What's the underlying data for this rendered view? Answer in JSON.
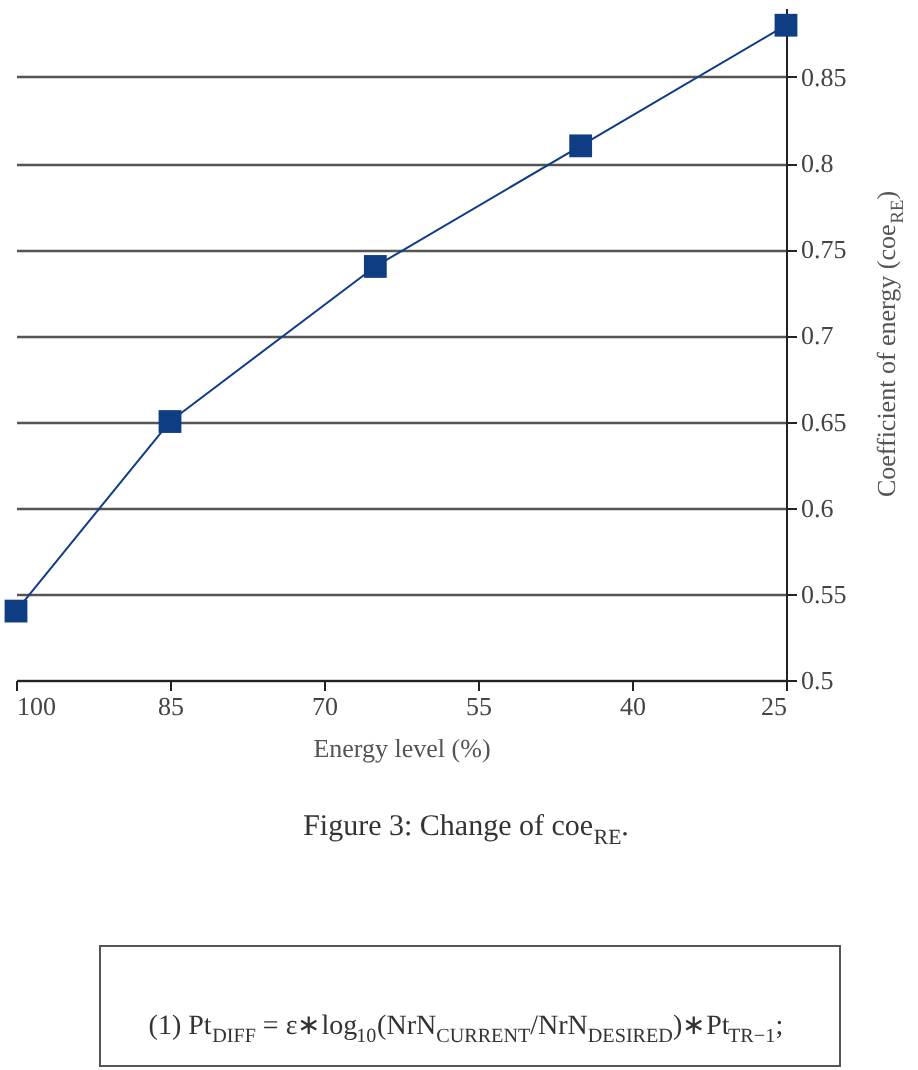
{
  "chart_data": {
    "type": "line",
    "xlabel": "Energy level (%)",
    "ylabel": "Coefficient of energy (coe$_{RE}$)",
    "x": [
      100,
      85,
      65,
      45,
      25
    ],
    "series": [
      {
        "color": "#0e3d84",
        "values": [
          0.54,
          0.65,
          0.74,
          0.81,
          0.88
        ]
      }
    ],
    "xlim": [
      100,
      25
    ],
    "xticks": [
      100,
      85,
      70,
      55,
      40,
      25
    ],
    "ylim": [
      0.5,
      0.89
    ],
    "yticks": [
      {
        "value": 0.5,
        "label": "0.5"
      },
      0.55,
      {
        "value": 0.6,
        "label": "0.6"
      },
      0.65,
      {
        "value": 0.7,
        "label": "0.7"
      },
      0.75,
      {
        "value": 0.8,
        "label": "0.8"
      },
      0.85
    ],
    "grid": "y",
    "marker": "square",
    "line_style": "solid",
    "annotations": [
      "Figure 3: Change of coe$_{RE}$.",
      "(1) Pt$_{DIFF}$ = ε∗log$_{10}$(NrN$_{CURRENT}$/NrN$_{DESIRED}$)∗Pt$_{TR−1}$;"
    ]
  }
}
